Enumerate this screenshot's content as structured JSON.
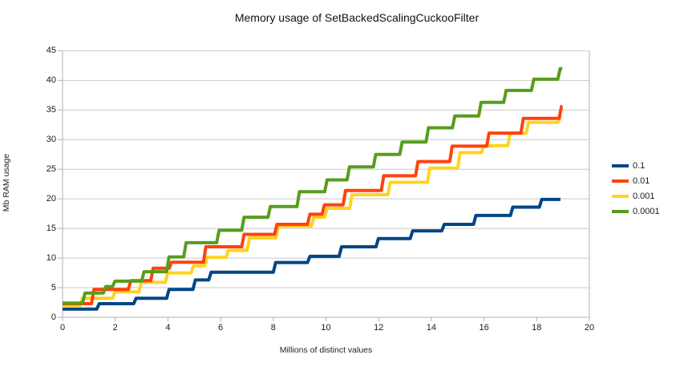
{
  "chart_data": {
    "type": "line",
    "subtype": "step",
    "title": "Memory usage of SetBackedScalingCuckooFilter",
    "xlabel": "Millions of distinct values",
    "ylabel": "Mb RAM usage",
    "xlim": [
      0,
      20
    ],
    "ylim": [
      0,
      45
    ],
    "xticks": [
      0,
      2,
      4,
      6,
      8,
      10,
      12,
      14,
      16,
      18,
      20
    ],
    "yticks": [
      0,
      5,
      10,
      15,
      20,
      25,
      30,
      35,
      40,
      45
    ],
    "grid": "horizontal",
    "legend_position": "right",
    "colors": {
      "grid": "#c9c9c9",
      "axis": "#b0b0b0",
      "text": "#1a1a1a"
    },
    "series": [
      {
        "name": "0.1",
        "color": "#004586",
        "x_end": 18.9,
        "points": [
          [
            0,
            1.4
          ],
          [
            1.3,
            2.3
          ],
          [
            2.7,
            3.2
          ],
          [
            3.95,
            4.7
          ],
          [
            4.95,
            6.3
          ],
          [
            5.55,
            7.6
          ],
          [
            8.0,
            9.25
          ],
          [
            9.3,
            10.3
          ],
          [
            10.5,
            11.9
          ],
          [
            11.9,
            13.3
          ],
          [
            13.2,
            14.6
          ],
          [
            14.4,
            15.7
          ],
          [
            15.6,
            17.2
          ],
          [
            17.0,
            18.6
          ],
          [
            18.1,
            19.9
          ]
        ]
      },
      {
        "name": "0.01",
        "color": "#ff420e",
        "x_end": 18.97,
        "points": [
          [
            0,
            2.3
          ],
          [
            1.1,
            4.7
          ],
          [
            2.5,
            6.2
          ],
          [
            3.35,
            8.3
          ],
          [
            4.05,
            9.3
          ],
          [
            5.35,
            11.9
          ],
          [
            6.8,
            14.0
          ],
          [
            8.05,
            15.7
          ],
          [
            9.3,
            17.4
          ],
          [
            9.85,
            19.0
          ],
          [
            10.65,
            21.4
          ],
          [
            12.1,
            23.9
          ],
          [
            13.4,
            26.3
          ],
          [
            14.7,
            28.9
          ],
          [
            16.1,
            31.1
          ],
          [
            17.4,
            33.6
          ],
          [
            18.85,
            35.6
          ]
        ]
      },
      {
        "name": "0.001",
        "color": "#ffd320",
        "x_end": 18.95,
        "points": [
          [
            0,
            1.9
          ],
          [
            0.66,
            3.2
          ],
          [
            1.9,
            4.3
          ],
          [
            2.9,
            5.9
          ],
          [
            3.9,
            7.5
          ],
          [
            4.88,
            8.7
          ],
          [
            5.4,
            10.1
          ],
          [
            6.2,
            11.3
          ],
          [
            7.0,
            13.4
          ],
          [
            8.1,
            15.4
          ],
          [
            9.45,
            16.9
          ],
          [
            9.95,
            18.4
          ],
          [
            10.9,
            20.7
          ],
          [
            12.35,
            22.8
          ],
          [
            13.85,
            25.2
          ],
          [
            15.0,
            27.8
          ],
          [
            15.9,
            29.0
          ],
          [
            16.9,
            31.1
          ],
          [
            17.6,
            32.9
          ],
          [
            18.8,
            33.7
          ]
        ]
      },
      {
        "name": "0.0001",
        "color": "#579d1c",
        "x_end": 18.97,
        "points": [
          [
            0,
            2.4
          ],
          [
            0.76,
            4.1
          ],
          [
            1.55,
            5.2
          ],
          [
            1.9,
            6.1
          ],
          [
            3.0,
            7.7
          ],
          [
            3.95,
            10.2
          ],
          [
            4.6,
            12.6
          ],
          [
            5.85,
            14.7
          ],
          [
            6.8,
            16.9
          ],
          [
            7.8,
            18.7
          ],
          [
            8.9,
            21.2
          ],
          [
            9.95,
            23.2
          ],
          [
            10.8,
            25.4
          ],
          [
            11.8,
            27.5
          ],
          [
            12.8,
            29.6
          ],
          [
            13.8,
            32.0
          ],
          [
            14.8,
            34.0
          ],
          [
            15.8,
            36.3
          ],
          [
            16.75,
            38.3
          ],
          [
            17.8,
            40.2
          ],
          [
            18.8,
            42.0
          ]
        ]
      }
    ]
  }
}
